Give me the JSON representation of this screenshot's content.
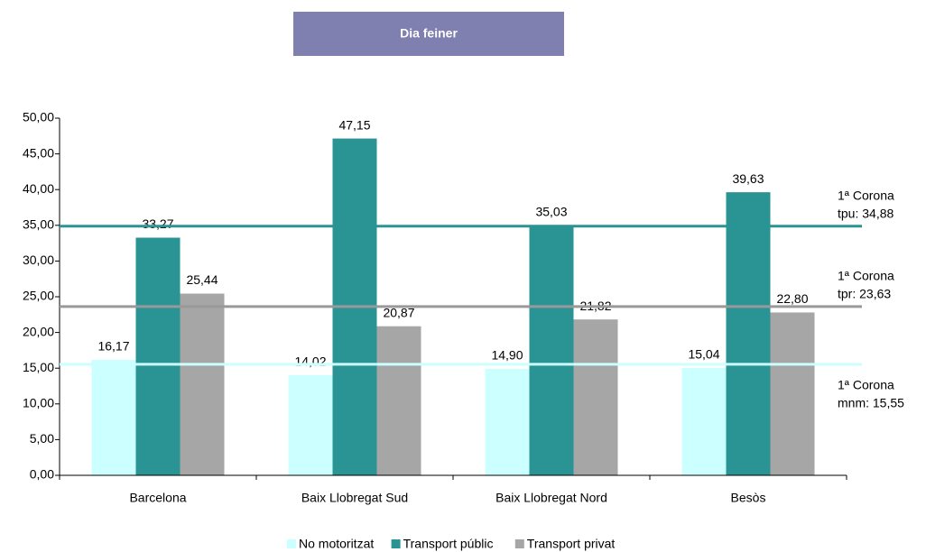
{
  "chart_data": {
    "type": "bar",
    "title": "Dia feiner",
    "categories": [
      "Barcelona",
      "Baix Llobregat Sud",
      "Baix Llobregat Nord",
      "Besòs"
    ],
    "series": [
      {
        "name": "No motoritzat",
        "color": "#ccffff",
        "values": [
          16.17,
          14.02,
          14.9,
          15.04
        ],
        "value_labels": [
          "16,17",
          "14,02",
          "14,90",
          "15,04"
        ]
      },
      {
        "name": "Transport públic",
        "color": "#2a9494",
        "values": [
          33.27,
          47.15,
          35.03,
          39.63
        ],
        "value_labels": [
          "33,27",
          "47,15",
          "35,03",
          "39,63"
        ]
      },
      {
        "name": "Transport privat",
        "color": "#a6a6a6",
        "values": [
          25.44,
          20.87,
          21.82,
          22.8
        ],
        "value_labels": [
          "25,44",
          "20,87",
          "21,82",
          "22,80"
        ]
      }
    ],
    "reference_lines": [
      {
        "value": 34.88,
        "color": "#2a9494",
        "label": [
          "1ª Corona",
          "tpu: 34,88"
        ]
      },
      {
        "value": 23.63,
        "color": "#999999",
        "label": [
          "1ª Corona",
          "tpr: 23,63"
        ]
      },
      {
        "value": 15.55,
        "color": "#ccffff",
        "label": [
          "1ª Corona",
          "mnm: 15,55"
        ]
      }
    ],
    "ylim": [
      0,
      50
    ],
    "yticks": [
      {
        "value": 0,
        "label": "0,00"
      },
      {
        "value": 5,
        "label": "5,00"
      },
      {
        "value": 10,
        "label": "10,00"
      },
      {
        "value": 15,
        "label": "15,00"
      },
      {
        "value": 20,
        "label": "20,00"
      },
      {
        "value": 25,
        "label": "25,00"
      },
      {
        "value": 30,
        "label": "30,00"
      },
      {
        "value": 35,
        "label": "35,00"
      },
      {
        "value": 40,
        "label": "40,00"
      },
      {
        "value": 45,
        "label": "45,00"
      },
      {
        "value": 50,
        "label": "50,00"
      }
    ],
    "grid": false,
    "legend": "bottom"
  }
}
